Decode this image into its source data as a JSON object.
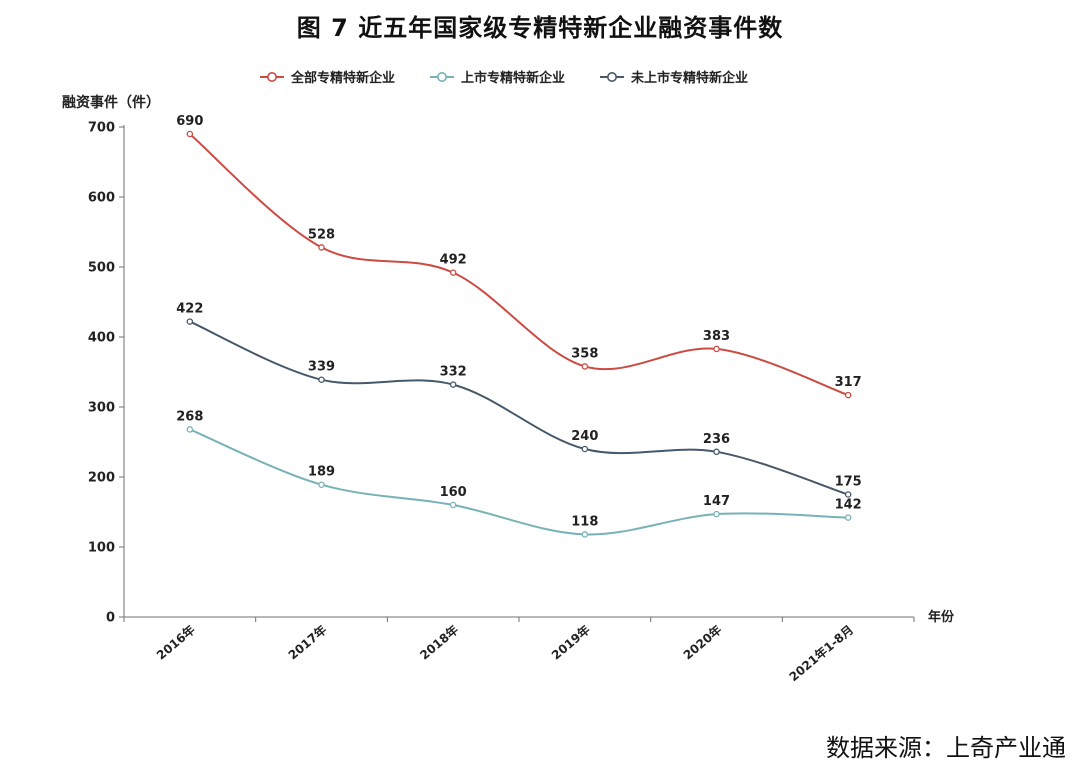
{
  "title": "图 7  近五年国家级专精特新企业融资事件数",
  "source": "数据来源：上奇产业通",
  "colors": {
    "series": [
      "#cc4b43",
      "#77b2b7",
      "#46596b"
    ],
    "axis": "#6e7079",
    "text": "#222222"
  },
  "chart_data": {
    "type": "line",
    "smooth": true,
    "title": "",
    "ylabel": "融资事件（件）",
    "xlabel": "年份",
    "ylim": [
      0,
      700
    ],
    "yticks": [
      0,
      100,
      200,
      300,
      400,
      500,
      600,
      700
    ],
    "grid": false,
    "legend_position": "top",
    "categories": [
      "2016年",
      "2017年",
      "2018年",
      "2019年",
      "2020年",
      "2021年1-8月"
    ],
    "series": [
      {
        "name": "全部专精特新企业",
        "values": [
          690,
          528,
          492,
          358,
          383,
          317
        ]
      },
      {
        "name": "上市专精特新企业",
        "values": [
          268,
          189,
          160,
          118,
          147,
          142
        ]
      },
      {
        "name": "未上市专精特新企业",
        "values": [
          422,
          339,
          332,
          240,
          236,
          175
        ]
      }
    ]
  }
}
